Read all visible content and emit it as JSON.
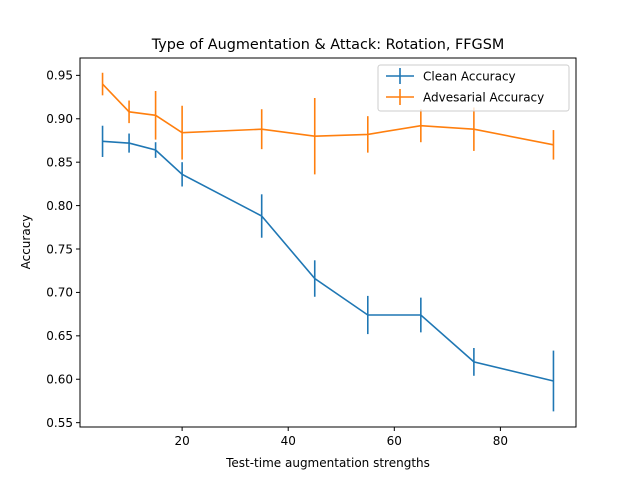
{
  "chart_data": {
    "type": "line",
    "title": "Type of Augmentation & Attack: Rotation, FFGSM",
    "xlabel": "Test-time augmentation strengths",
    "ylabel": "Accuracy",
    "xlim": [
      0.75,
      94.25
    ],
    "ylim": [
      0.545,
      0.97
    ],
    "xticks": [
      20,
      40,
      60,
      80
    ],
    "yticks": [
      0.55,
      0.6,
      0.65,
      0.7,
      0.75,
      0.8,
      0.85,
      0.9,
      0.95
    ],
    "x": [
      5,
      10,
      15,
      20,
      35,
      45,
      55,
      65,
      75,
      90
    ],
    "grid": false,
    "legend_position": "top-right",
    "series": [
      {
        "name": "Clean Accuracy",
        "color": "#1f77b4",
        "values": [
          0.874,
          0.872,
          0.864,
          0.836,
          0.788,
          0.716,
          0.674,
          0.674,
          0.62,
          0.598
        ],
        "errors": [
          0.018,
          0.011,
          0.009,
          0.014,
          0.025,
          0.021,
          0.022,
          0.02,
          0.016,
          0.035
        ]
      },
      {
        "name": "Advesarial Accuracy",
        "color": "#ff7f0e",
        "values": [
          0.94,
          0.908,
          0.904,
          0.884,
          0.888,
          0.88,
          0.882,
          0.892,
          0.888,
          0.87
        ],
        "errors": [
          0.013,
          0.013,
          0.028,
          0.031,
          0.023,
          0.044,
          0.021,
          0.019,
          0.025,
          0.017
        ]
      }
    ]
  }
}
